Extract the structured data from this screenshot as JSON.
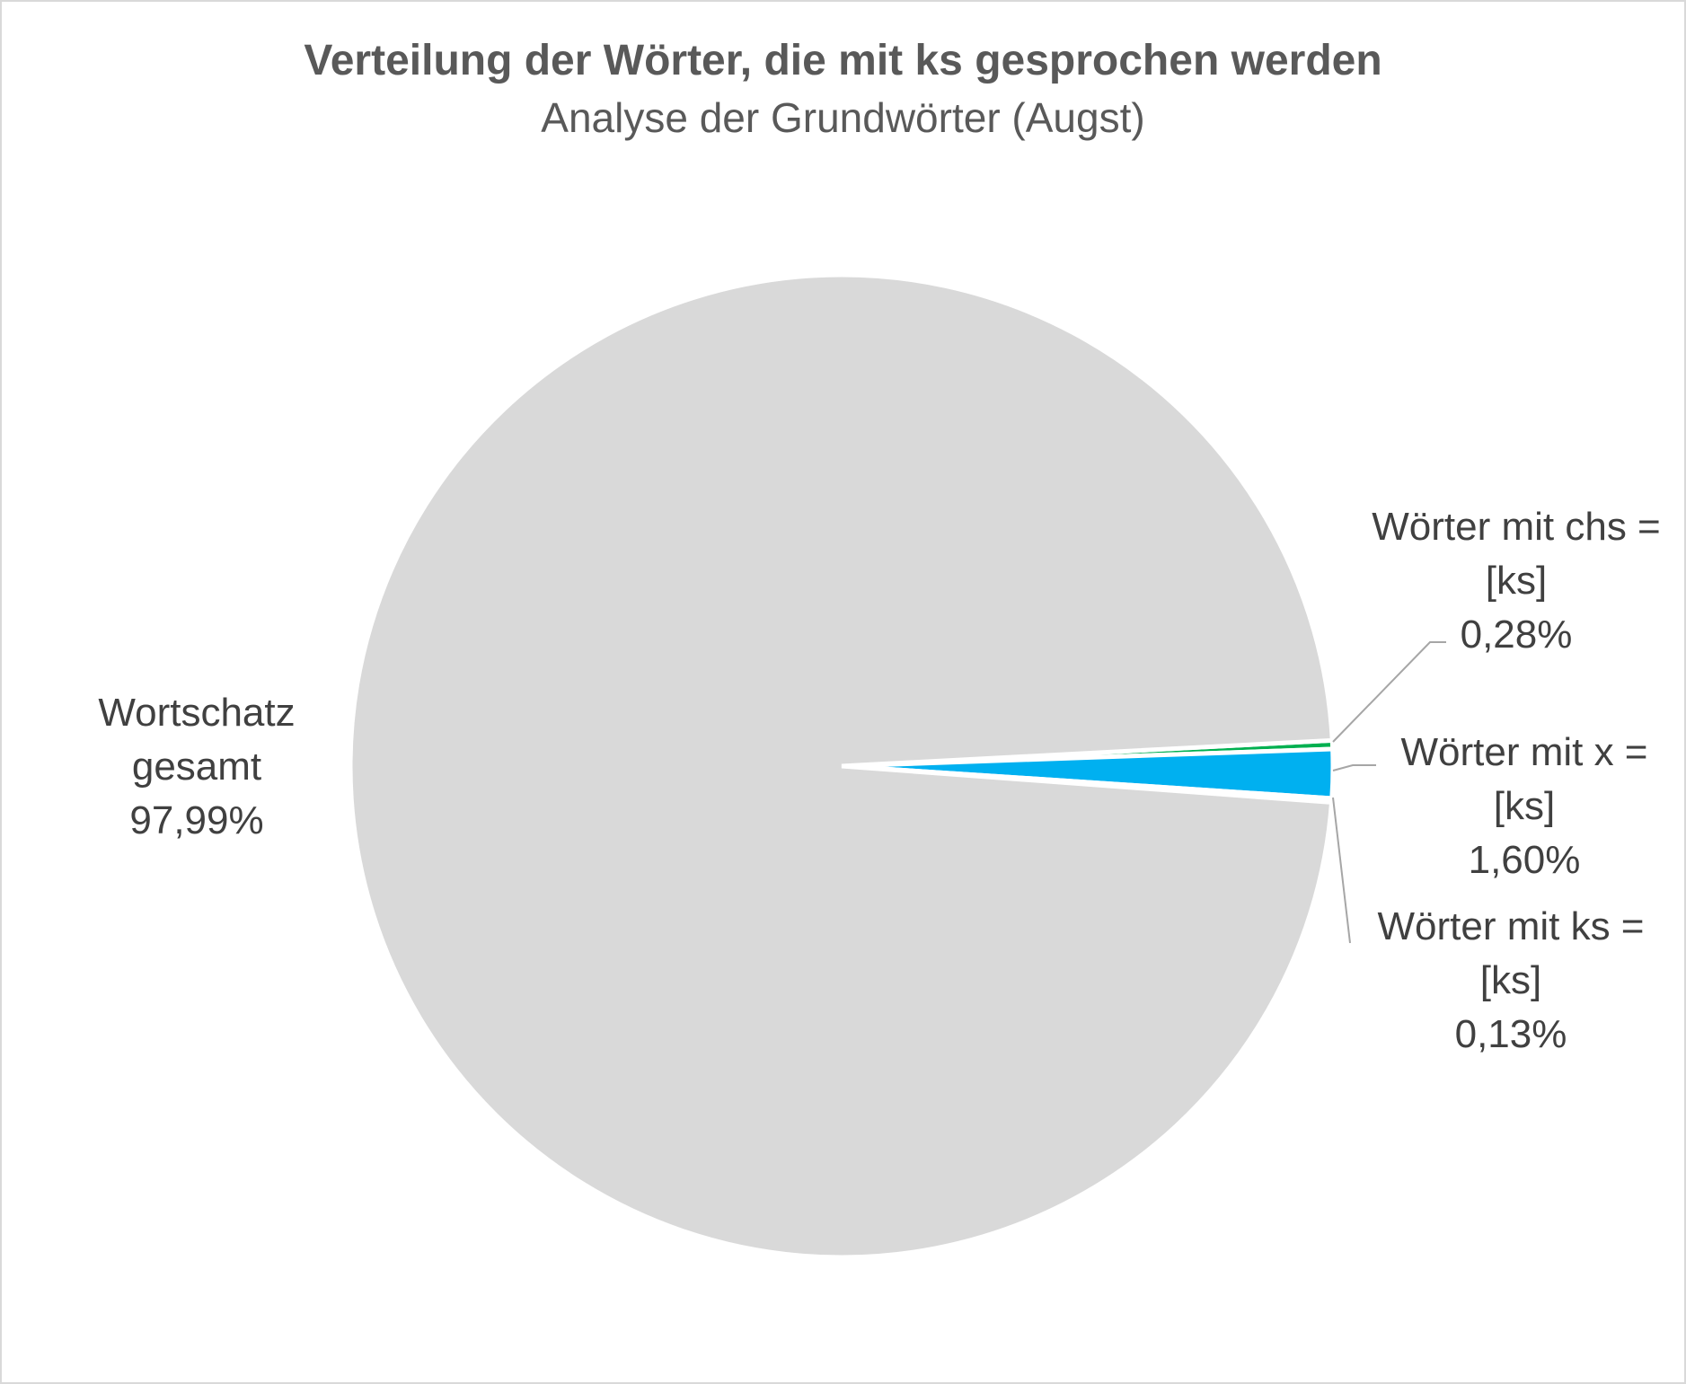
{
  "chart_data": {
    "type": "pie",
    "title": "Verteilung der Wörter, die mit ks gesprochen werden",
    "subtitle": "Analyse der Grundwörter (Augst)",
    "categories": [
      "Wörter mit chs = [ks]",
      "Wörter mit x = [ks]",
      "Wörter mit ks = [ks]",
      "Wortschatz gesamt"
    ],
    "values": [
      0.28,
      1.6,
      0.13,
      97.99
    ],
    "value_labels": [
      "0,28%",
      "1,60%",
      "0,13%",
      "97,99%"
    ],
    "colors": [
      "#00b050",
      "#00b0f0",
      "#a5a5a5",
      "#d9d9d9"
    ],
    "start_angle": 87
  }
}
